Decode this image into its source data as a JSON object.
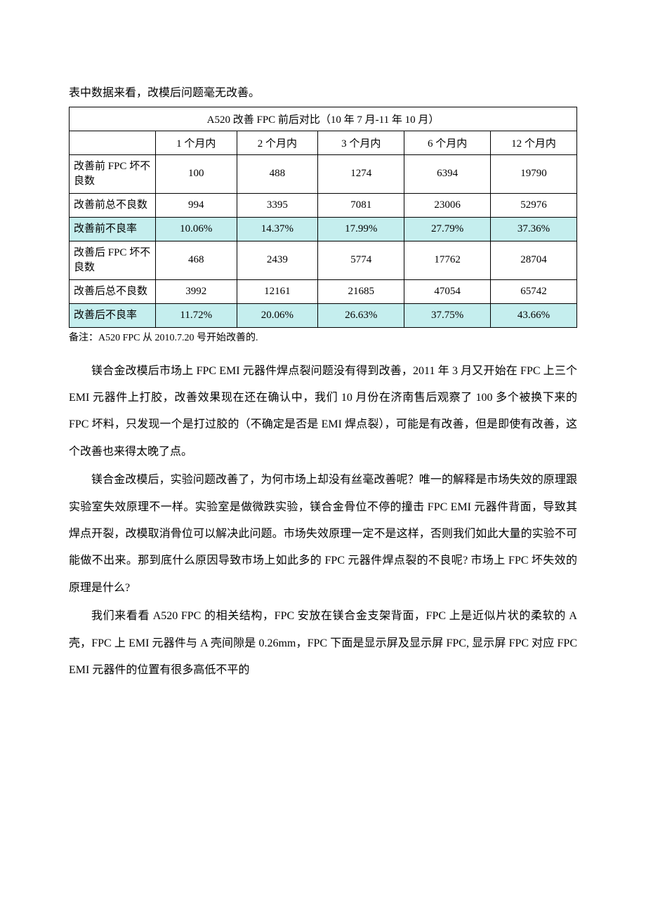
{
  "intro": "表中数据来看，改模后问题毫无改善。",
  "table": {
    "title": "A520 改善 FPC 前后对比（10 年 7 月-11 年 10 月）",
    "columns": [
      "",
      "1 个月内",
      "2 个月内",
      "3 个月内",
      "6 个月内",
      "12 个月内"
    ],
    "rows": [
      {
        "label": "改善前 FPC 坏不良数",
        "values": [
          "100",
          "488",
          "1274",
          "6394",
          "19790"
        ],
        "highlight": false
      },
      {
        "label": "改善前总不良数",
        "values": [
          "994",
          "3395",
          "7081",
          "23006",
          "52976"
        ],
        "highlight": false
      },
      {
        "label": "改善前不良率",
        "values": [
          "10.06%",
          "14.37%",
          "17.99%",
          "27.79%",
          "37.36%"
        ],
        "highlight": true
      },
      {
        "label": "改善后 FPC 坏不良数",
        "values": [
          "468",
          "2439",
          "5774",
          "17762",
          "28704"
        ],
        "highlight": false
      },
      {
        "label": "改善后总不良数",
        "values": [
          "3992",
          "12161",
          "21685",
          "47054",
          "65742"
        ],
        "highlight": false
      },
      {
        "label": "改善后不良率",
        "values": [
          "11.72%",
          "20.06%",
          "26.63%",
          "37.75%",
          "43.66%"
        ],
        "highlight": true
      }
    ],
    "colwidths": [
      "17%",
      "16%",
      "16%",
      "17%",
      "17%",
      "17%"
    ],
    "highlight_bg": "#c5eeee",
    "border_color": "#000000"
  },
  "note": "备注：A520  FPC 从 2010.7.20 号开始改善的.",
  "paragraphs": [
    "镁合金改模后市场上 FPC EMI 元器件焊点裂问题没有得到改善，2011 年 3 月又开始在 FPC 上三个 EMI 元器件上打胶，改善效果现在还在确认中，我们 10 月份在济南售后观察了 100 多个被换下来的 FPC 坏料，只发现一个是打过胶的（不确定是否是 EMI 焊点裂），可能是有改善，但是即使有改善，这个改善也来得太晚了点。",
    "镁合金改模后，实验问题改善了，为何市场上却没有丝毫改善呢？唯一的解释是市场失效的原理跟实验室失效原理不一样。实验室是做微跌实验，镁合金骨位不停的撞击 FPC EMI 元器件背面，导致其焊点开裂，改模取消骨位可以解决此问题。市场失效原理一定不是这样，否则我们如此大量的实验不可能做不出来。那到底什么原因导致市场上如此多的 FPC 元器件焊点裂的不良呢? 市场上 FPC 坏失效的原理是什么?",
    "我们来看看 A520 FPC 的相关结构，FPC 安放在镁合金支架背面，FPC 上是近似片状的柔软的 A 壳，FPC 上 EMI 元器件与 A 壳间隙是 0.26mm，FPC 下面是显示屏及显示屏 FPC,  显示屏 FPC 对应 FPC   EMI 元器件的位置有很多高低不平的"
  ]
}
